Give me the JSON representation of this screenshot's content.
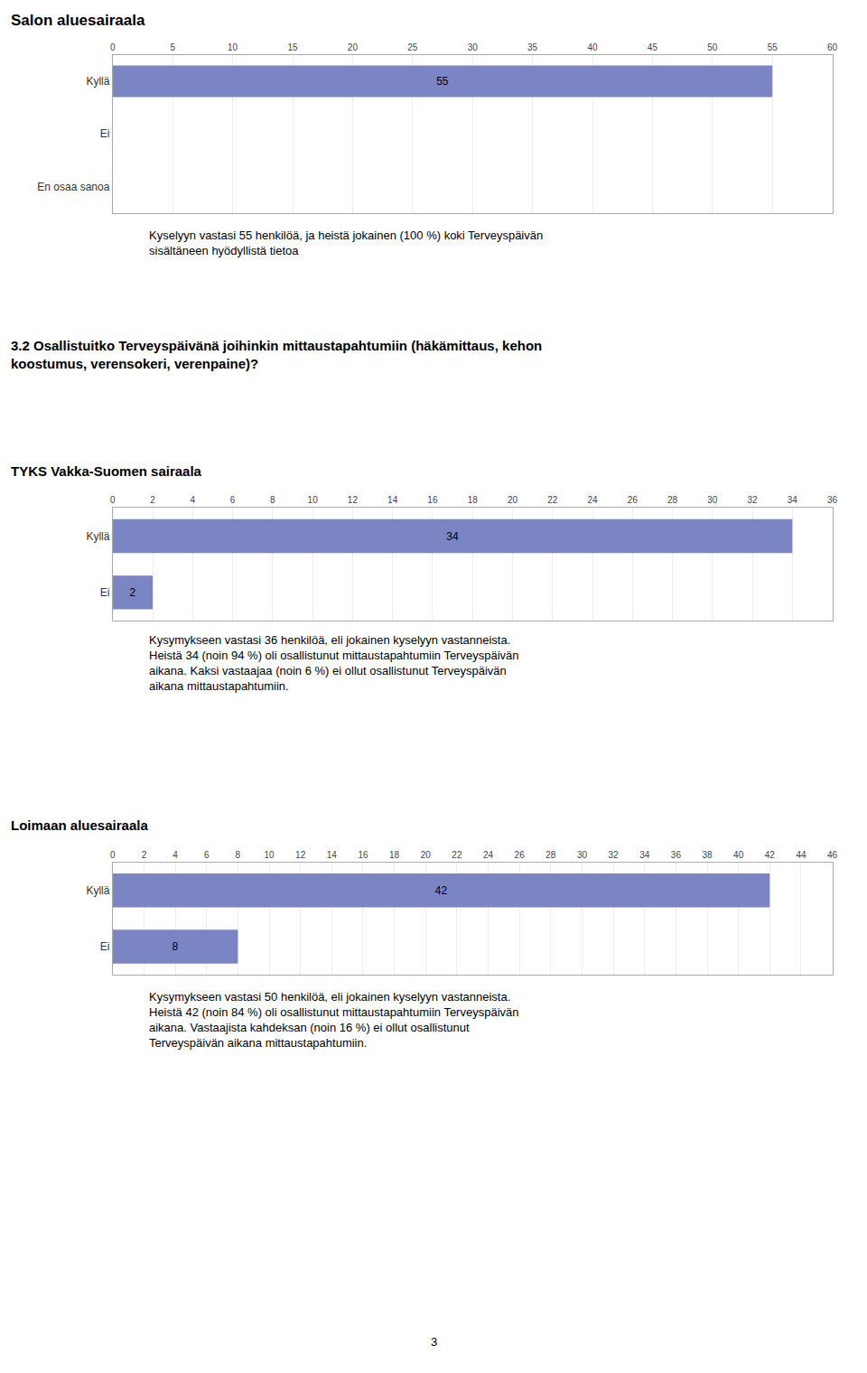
{
  "chart_data": [
    {
      "type": "bar",
      "orientation": "horizontal",
      "title": "Salon aluesairaala",
      "categories": [
        "En osaa sanoa",
        "Ei",
        "Kyllä"
      ],
      "values": [
        0,
        0,
        55
      ],
      "color": "#7b85c4",
      "xlim": [
        0,
        60
      ],
      "xticks": [
        0,
        5,
        10,
        15,
        20,
        25,
        30,
        35,
        40,
        45,
        50,
        55,
        60
      ],
      "grid": true,
      "data_labels": true,
      "annotations": [
        "Kyselyyn vastasi 55 henkilöä, ja heistä jokainen (100 %) koki Terveyspäivän\nsisältäneen hyödyllistä tietoa"
      ]
    },
    {
      "type": "bar",
      "orientation": "horizontal",
      "title": "3.2 Osallistuitko Terveyspäivänä joihinkin mittaustapahtumiin (häkämittaus, kehon\nkoostumus, verensokeri, verenpaine)?",
      "subtitle": "TYKS Vakka-Suomen sairaala",
      "categories": [
        "Ei",
        "Kyllä"
      ],
      "values": [
        2,
        34
      ],
      "color": "#7b85c4",
      "xlim": [
        0,
        36
      ],
      "xticks": [
        0,
        2,
        4,
        6,
        8,
        10,
        12,
        14,
        16,
        18,
        20,
        22,
        24,
        26,
        28,
        30,
        32,
        34,
        36
      ],
      "grid": true,
      "data_labels": true,
      "annotations": [
        "Kysymykseen vastasi 36 henkilöä, eli jokainen kyselyyn vastanneista.\nHeistä 34 (noin 94 %) oli osallistunut mittaustapahtumiin Terveyspäivän\naikana. Kaksi vastaajaa (noin 6 %) ei ollut osallistunut Terveyspäivän\naikana mittaustapahtumiin."
      ]
    },
    {
      "type": "bar",
      "orientation": "horizontal",
      "subtitle": "Loimaan aluesairaala",
      "categories": [
        "Ei",
        "Kyllä"
      ],
      "values": [
        8,
        42
      ],
      "color": "#7b85c4",
      "xlim": [
        0,
        46
      ],
      "xticks": [
        0,
        2,
        4,
        6,
        8,
        10,
        12,
        14,
        16,
        18,
        20,
        22,
        24,
        26,
        28,
        30,
        32,
        34,
        36,
        38,
        40,
        42,
        44,
        46
      ],
      "grid": true,
      "data_labels": true,
      "annotations": [
        "Kysymykseen vastasi 50 henkilöä, eli jokainen kyselyyn vastanneista.\nHeistä 42 (noin 84 %) oli osallistunut mittaustapahtumiin Terveyspäivän\naikana. Vastaajista kahdeksan (noin 16 %) ei ollut osallistunut\nTerveyspäivän aikana mittaustapahtumiin.",
        "3"
      ]
    }
  ]
}
